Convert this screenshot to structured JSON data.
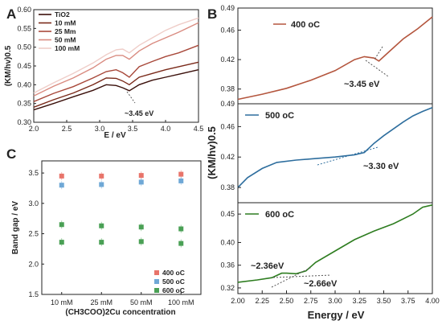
{
  "chart_data": [
    {
      "panel": "A",
      "type": "line",
      "xlabel": "E / eV",
      "ylabel": "(KM/hv)0.5",
      "xlim": [
        2.0,
        4.5
      ],
      "ylim": [
        0.3,
        0.6
      ],
      "xticks": [
        "2.0",
        "2.5",
        "3.0",
        "3.5",
        "4.0",
        "4.5"
      ],
      "yticks": [
        "0.30",
        "0.35",
        "0.40",
        "0.45",
        "0.50",
        "0.55",
        "0.60"
      ],
      "legend_position": "top-left",
      "annotations": [
        "~3.45 eV"
      ],
      "series": [
        {
          "name": "TiO2",
          "color": "#3a0f0a",
          "x": [
            2.0,
            2.3,
            2.6,
            2.9,
            3.1,
            3.25,
            3.35,
            3.45,
            3.6,
            3.8,
            4.0,
            4.2,
            4.5
          ],
          "y": [
            0.333,
            0.35,
            0.368,
            0.385,
            0.4,
            0.398,
            0.392,
            0.384,
            0.4,
            0.412,
            0.42,
            0.428,
            0.44
          ]
        },
        {
          "name": "10 mM",
          "color": "#7a2a1a",
          "x": [
            2.0,
            2.3,
            2.6,
            2.9,
            3.1,
            3.25,
            3.35,
            3.45,
            3.6,
            3.8,
            4.0,
            4.2,
            4.5
          ],
          "y": [
            0.34,
            0.36,
            0.378,
            0.4,
            0.418,
            0.417,
            0.41,
            0.4,
            0.42,
            0.43,
            0.44,
            0.448,
            0.46
          ]
        },
        {
          "name": "25 Mm",
          "color": "#a8483a",
          "x": [
            2.0,
            2.3,
            2.6,
            2.9,
            3.1,
            3.25,
            3.35,
            3.45,
            3.6,
            3.8,
            4.0,
            4.2,
            4.5
          ],
          "y": [
            0.355,
            0.377,
            0.395,
            0.418,
            0.435,
            0.44,
            0.432,
            0.42,
            0.448,
            0.462,
            0.475,
            0.485,
            0.505
          ]
        },
        {
          "name": "50 mM",
          "color": "#d98b80",
          "x": [
            2.0,
            2.3,
            2.6,
            2.9,
            3.1,
            3.25,
            3.35,
            3.45,
            3.6,
            3.8,
            4.0,
            4.2,
            4.5
          ],
          "y": [
            0.37,
            0.396,
            0.418,
            0.445,
            0.468,
            0.478,
            0.478,
            0.468,
            0.49,
            0.51,
            0.525,
            0.54,
            0.565
          ]
        },
        {
          "name": "100 mM",
          "color": "#efcdc8",
          "x": [
            2.0,
            2.3,
            2.6,
            2.9,
            3.1,
            3.25,
            3.35,
            3.45,
            3.6,
            3.8,
            4.0,
            4.2,
            4.5
          ],
          "y": [
            0.378,
            0.405,
            0.43,
            0.458,
            0.48,
            0.493,
            0.495,
            0.485,
            0.505,
            0.525,
            0.545,
            0.56,
            0.578
          ]
        }
      ]
    },
    {
      "panel": "B",
      "type": "line",
      "title": "400 oC",
      "xlim": [
        2.0,
        4.0
      ],
      "ylim": [
        0.36,
        0.49
      ],
      "yticks": [
        "0.38",
        "0.42",
        "0.46",
        "0.49"
      ],
      "annotations": [
        "~3.45 eV"
      ],
      "series": [
        {
          "name": "400 oC",
          "color": "#b4563e",
          "x": [
            2.0,
            2.25,
            2.5,
            2.75,
            3.0,
            3.2,
            3.3,
            3.4,
            3.45,
            3.55,
            3.7,
            3.85,
            4.0
          ],
          "y": [
            0.366,
            0.373,
            0.381,
            0.392,
            0.405,
            0.42,
            0.424,
            0.422,
            0.418,
            0.43,
            0.448,
            0.462,
            0.478
          ]
        }
      ]
    },
    {
      "panel": "B",
      "type": "line",
      "title": "500 oC",
      "xlim": [
        2.0,
        4.0
      ],
      "ylim": [
        0.36,
        0.49
      ],
      "yticks": [
        "0.38",
        "0.42",
        "0.46",
        "0.49"
      ],
      "ylabel": "(KM/hv)0.5",
      "annotations": [
        "~3.30 eV"
      ],
      "series": [
        {
          "name": "500 oC",
          "color": "#2e6e9e",
          "x": [
            2.0,
            2.1,
            2.25,
            2.4,
            2.6,
            2.8,
            3.0,
            3.2,
            3.3,
            3.4,
            3.5,
            3.6,
            3.7,
            3.8,
            3.9,
            4.0
          ],
          "y": [
            0.38,
            0.393,
            0.405,
            0.413,
            0.416,
            0.418,
            0.42,
            0.423,
            0.426,
            0.438,
            0.448,
            0.457,
            0.466,
            0.474,
            0.48,
            0.485
          ]
        }
      ]
    },
    {
      "panel": "B",
      "type": "line",
      "title": "600 oC",
      "xlim": [
        2.0,
        4.0
      ],
      "ylim": [
        0.31,
        0.47
      ],
      "xticks": [
        "2.00",
        "2.25",
        "2.50",
        "2.75",
        "3.00",
        "3.25",
        "3.50",
        "3.75",
        "4.00"
      ],
      "yticks": [
        "0.32",
        "0.36",
        "0.40",
        "0.45"
      ],
      "xlabel": "Energy / eV",
      "annotations": [
        "~2.36eV",
        "~2.66eV"
      ],
      "series": [
        {
          "name": "600 oC",
          "color": "#2e7d20",
          "x": [
            2.0,
            2.2,
            2.35,
            2.45,
            2.5,
            2.6,
            2.7,
            2.8,
            3.0,
            3.2,
            3.4,
            3.6,
            3.8,
            3.9,
            4.0
          ],
          "y": [
            0.33,
            0.334,
            0.338,
            0.346,
            0.346,
            0.345,
            0.35,
            0.365,
            0.385,
            0.405,
            0.42,
            0.433,
            0.45,
            0.462,
            0.466
          ]
        }
      ]
    },
    {
      "panel": "C",
      "type": "scatter",
      "xlabel": "(CH3COO)2Cu concentration",
      "ylabel": "Band gap / eV",
      "categories": [
        "10 mM",
        "25 mM",
        "50 mM",
        "100 mM"
      ],
      "ylim": [
        1.5,
        3.7
      ],
      "yticks": [
        "1.5",
        "2.0",
        "2.5",
        "3.0",
        "3.5"
      ],
      "legend_position": "bottom-right",
      "series": [
        {
          "name": "400 oC",
          "color": "#e8746a",
          "values": [
            3.45,
            3.45,
            3.46,
            3.48
          ]
        },
        {
          "name": "500 oC",
          "color": "#6fa8d6",
          "values": [
            3.3,
            3.31,
            3.35,
            3.37
          ]
        },
        {
          "name": "600 oC",
          "color": "#4aa055",
          "values": [
            2.65,
            2.63,
            2.61,
            2.58
          ]
        },
        {
          "name": "600 oC",
          "color": "#4aa055",
          "values": [
            2.36,
            2.36,
            2.37,
            2.34
          ]
        }
      ]
    }
  ]
}
